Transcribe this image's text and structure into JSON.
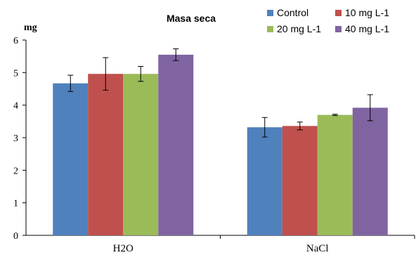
{
  "chart_data": {
    "type": "bar",
    "title": "Masa seca",
    "ylabel": "mg",
    "xlabel": "",
    "ylim": [
      0,
      6
    ],
    "yticks": [
      0,
      1,
      2,
      3,
      4,
      5,
      6
    ],
    "grid": false,
    "legend_position": "top-right",
    "categories": [
      "H2O",
      "NaCl"
    ],
    "series": [
      {
        "name": "Control",
        "color": "#4F81BD",
        "values": [
          4.67,
          3.32
        ],
        "errors": [
          0.25,
          0.3
        ]
      },
      {
        "name": "10 mg L-1",
        "color": "#C0504D",
        "values": [
          4.96,
          3.36
        ],
        "errors": [
          0.5,
          0.12
        ]
      },
      {
        "name": "20 mg L-1",
        "color": "#9BBB59",
        "values": [
          4.96,
          3.7
        ],
        "errors": [
          0.23,
          0.02
        ]
      },
      {
        "name": "40 mg L-1",
        "color": "#8064A2",
        "values": [
          5.55,
          3.92
        ],
        "errors": [
          0.18,
          0.4
        ]
      }
    ]
  }
}
